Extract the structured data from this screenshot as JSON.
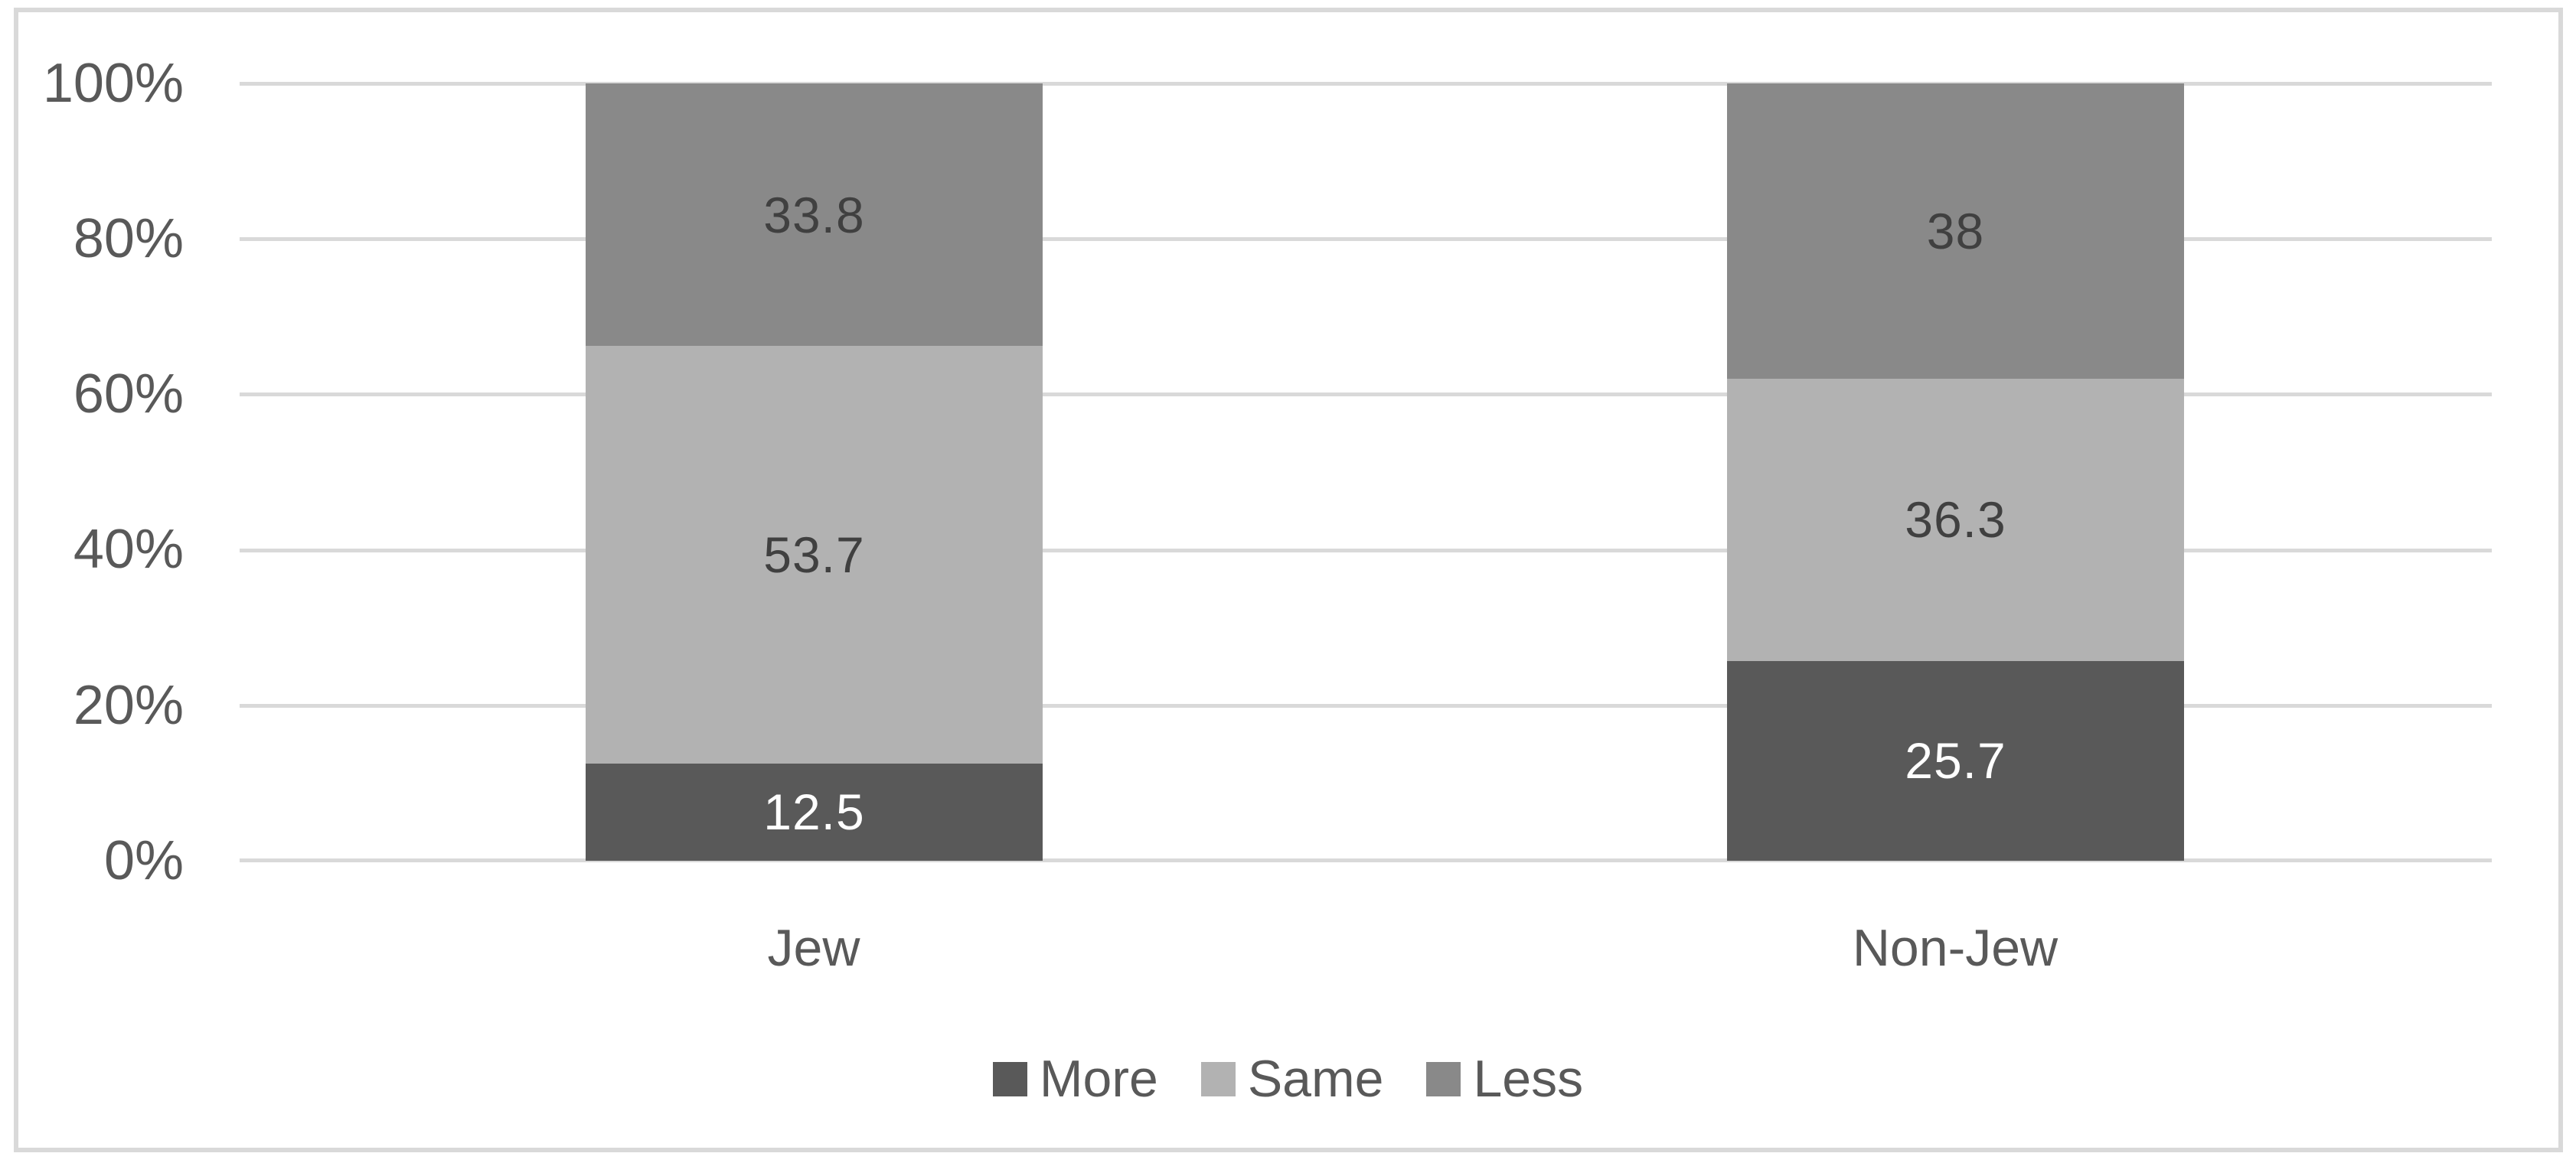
{
  "chart_data": {
    "type": "bar",
    "subtype": "stacked-100-percent-column",
    "title": "",
    "xlabel": "",
    "ylabel": "",
    "categories": [
      "Jew",
      "Non-Jew"
    ],
    "series": [
      {
        "name": "More",
        "values": [
          12.5,
          25.7
        ],
        "color": "#595959",
        "label_color": "#ffffff"
      },
      {
        "name": "Same",
        "values": [
          53.7,
          36.3
        ],
        "color": "#b2b2b2",
        "label_color": "#404040"
      },
      {
        "name": "Less",
        "values": [
          33.8,
          38
        ],
        "color": "#898989",
        "label_color": "#404040"
      }
    ],
    "stack_order_bottom_to_top": [
      "More",
      "Same",
      "Less"
    ],
    "yticks": [
      "100%",
      "80%",
      "60%",
      "40%",
      "20%",
      "0%"
    ],
    "ylim": [
      0,
      100
    ],
    "grid": true,
    "legend_position": "bottom-center"
  },
  "colors": {
    "gridline": "#d9d9d9",
    "border": "#d9d9d9",
    "axis_text": "#595959",
    "data_label_text": "#404040",
    "background": "#ffffff"
  }
}
